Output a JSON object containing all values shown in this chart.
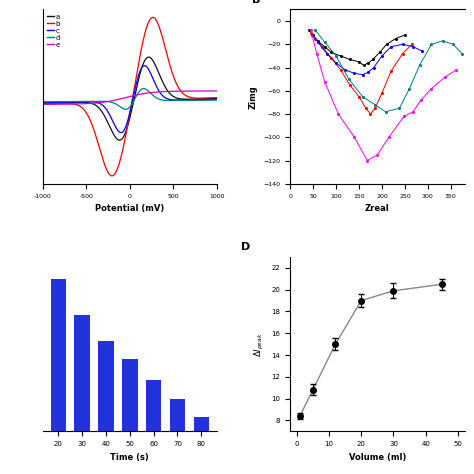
{
  "panel_A": {
    "xlabel": "Potential (mV)",
    "xlim": [
      -1000,
      1000
    ],
    "legend_labels": [
      "a",
      "b",
      "c",
      "d",
      "e"
    ],
    "legend_colors": [
      "#111111",
      "#ff0000",
      "#0000ff",
      "#008080",
      "#cc00cc"
    ]
  },
  "panel_B": {
    "xlabel": "Zreal",
    "ylabel": "Zimg",
    "xlim": [
      0,
      380
    ],
    "ylim": [
      -140,
      10
    ],
    "xticks": [
      0,
      50,
      100,
      150,
      200,
      250,
      300,
      350
    ],
    "yticks": [
      -140,
      -120,
      -100,
      -80,
      -60,
      -40,
      -20,
      0
    ],
    "series_colors": [
      "#000000",
      "#ff0000",
      "#0000ff",
      "#008080",
      "#ff00ff"
    ]
  },
  "panel_C": {
    "xlabel": "Time (s)",
    "bar_color": "#2233dd",
    "categories": [
      20,
      30,
      40,
      50,
      60,
      70,
      80
    ],
    "values": [
      105,
      80,
      62,
      50,
      35,
      22,
      10
    ]
  },
  "panel_D": {
    "xlabel": "Volume (ml)",
    "ylabel": "ΔI_peak",
    "xlim": [
      -2,
      52
    ],
    "ylim": [
      7,
      23
    ],
    "xticks": [
      0,
      10,
      20,
      30,
      40,
      50
    ],
    "yticks": [
      8,
      10,
      12,
      14,
      16,
      18,
      20,
      22
    ],
    "xdata": [
      1,
      5,
      12,
      20,
      30,
      45
    ],
    "ydata": [
      8.4,
      10.8,
      15.0,
      19.0,
      19.9,
      20.5
    ],
    "yerr": [
      0.3,
      0.5,
      0.55,
      0.6,
      0.7,
      0.5
    ]
  }
}
